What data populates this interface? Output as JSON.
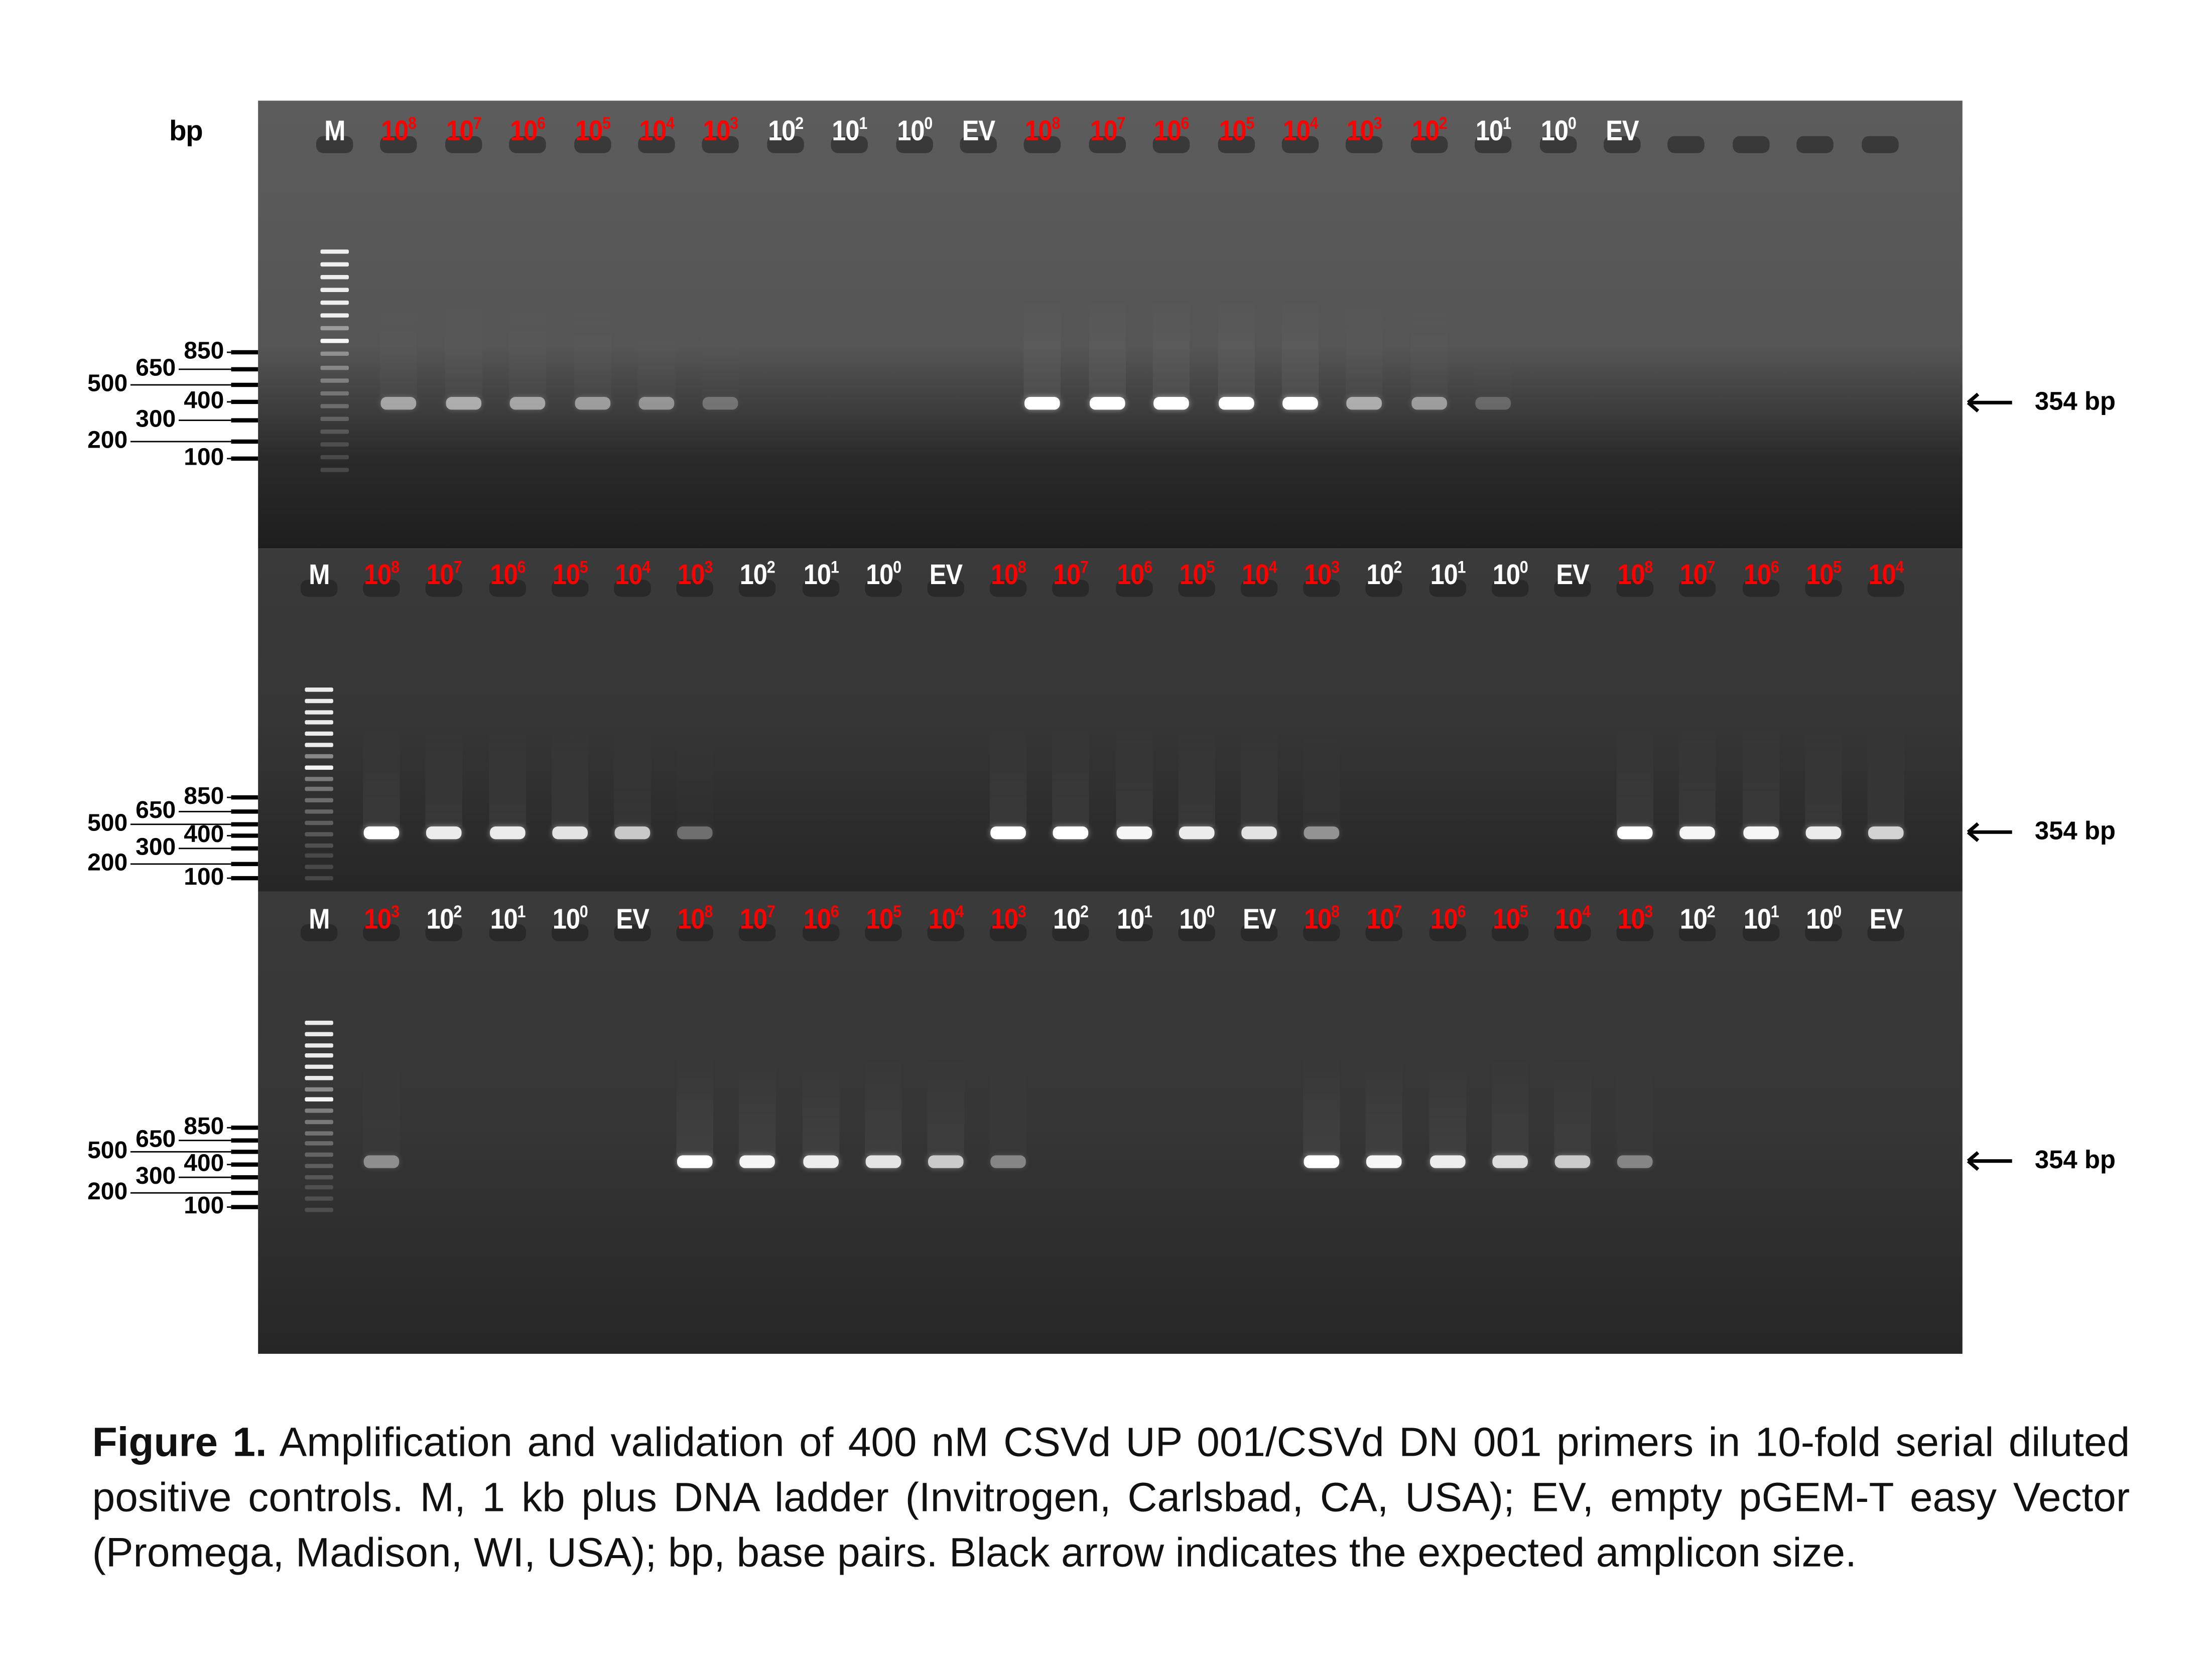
{
  "figure": {
    "axis_unit": "bp",
    "ladder_ticks": [
      "850",
      "650",
      "500",
      "400",
      "300",
      "200",
      "100"
    ],
    "amplicon_label": "354 bp",
    "colors": {
      "positive_label": "#ff0000",
      "negative_label": "#ffffff",
      "gel_top": "#5a5a5a",
      "gel_bottom": "#1f1f1f"
    },
    "panels": [
      {
        "lanes": [
          {
            "label": "M"
          },
          {
            "base": "10",
            "exp": "8",
            "red": true,
            "band": 0.45
          },
          {
            "base": "10",
            "exp": "7",
            "red": true,
            "band": 0.5
          },
          {
            "base": "10",
            "exp": "6",
            "red": true,
            "band": 0.45
          },
          {
            "base": "10",
            "exp": "5",
            "red": true,
            "band": 0.4
          },
          {
            "base": "10",
            "exp": "4",
            "red": true,
            "band": 0.35
          },
          {
            "base": "10",
            "exp": "3",
            "red": true,
            "band": 0.15
          },
          {
            "base": "10",
            "exp": "2",
            "band": 0
          },
          {
            "base": "10",
            "exp": "1",
            "band": 0
          },
          {
            "base": "10",
            "exp": "0",
            "band": 0
          },
          {
            "label": "EV",
            "band": 0
          },
          {
            "base": "10",
            "exp": "8",
            "red": true,
            "band": 1
          },
          {
            "base": "10",
            "exp": "7",
            "red": true,
            "band": 1
          },
          {
            "base": "10",
            "exp": "6",
            "red": true,
            "band": 1
          },
          {
            "base": "10",
            "exp": "5",
            "red": true,
            "band": 1
          },
          {
            "base": "10",
            "exp": "4",
            "red": true,
            "band": 1
          },
          {
            "base": "10",
            "exp": "3",
            "red": true,
            "band": 0.5
          },
          {
            "base": "10",
            "exp": "2",
            "red": true,
            "band": 0.4
          },
          {
            "base": "10",
            "exp": "1",
            "band": 0.08
          },
          {
            "base": "10",
            "exp": "0",
            "band": 0
          },
          {
            "label": "EV",
            "band": 0
          },
          {
            "empty": true
          },
          {
            "empty": true
          },
          {
            "empty": true
          },
          {
            "empty": true
          }
        ]
      },
      {
        "lanes": [
          {
            "label": "M"
          },
          {
            "base": "10",
            "exp": "8",
            "red": true,
            "band": 1
          },
          {
            "base": "10",
            "exp": "7",
            "red": true,
            "band": 0.9
          },
          {
            "base": "10",
            "exp": "6",
            "red": true,
            "band": 0.9
          },
          {
            "base": "10",
            "exp": "5",
            "red": true,
            "band": 0.85
          },
          {
            "base": "10",
            "exp": "4",
            "red": true,
            "band": 0.7
          },
          {
            "base": "10",
            "exp": "3",
            "red": true,
            "band": 0.2
          },
          {
            "base": "10",
            "exp": "2",
            "band": 0
          },
          {
            "base": "10",
            "exp": "1",
            "band": 0
          },
          {
            "base": "10",
            "exp": "0",
            "band": 0
          },
          {
            "label": "EV",
            "band": 0
          },
          {
            "base": "10",
            "exp": "8",
            "red": true,
            "band": 1
          },
          {
            "base": "10",
            "exp": "7",
            "red": true,
            "band": 1
          },
          {
            "base": "10",
            "exp": "6",
            "red": true,
            "band": 0.95
          },
          {
            "base": "10",
            "exp": "5",
            "red": true,
            "band": 0.9
          },
          {
            "base": "10",
            "exp": "4",
            "red": true,
            "band": 0.85
          },
          {
            "base": "10",
            "exp": "3",
            "red": true,
            "band": 0.4
          },
          {
            "base": "10",
            "exp": "2",
            "band": 0
          },
          {
            "base": "10",
            "exp": "1",
            "band": 0
          },
          {
            "base": "10",
            "exp": "0",
            "band": 0
          },
          {
            "label": "EV",
            "band": 0
          },
          {
            "base": "10",
            "exp": "8",
            "red": true,
            "band": 1
          },
          {
            "base": "10",
            "exp": "7",
            "red": true,
            "band": 0.95
          },
          {
            "base": "10",
            "exp": "6",
            "red": true,
            "band": 0.95
          },
          {
            "base": "10",
            "exp": "5",
            "red": true,
            "band": 0.9
          },
          {
            "base": "10",
            "exp": "4",
            "red": true,
            "band": 0.75
          }
        ]
      },
      {
        "lanes": [
          {
            "label": "M"
          },
          {
            "base": "10",
            "exp": "3",
            "red": true,
            "band": 0.35
          },
          {
            "base": "10",
            "exp": "2",
            "band": 0
          },
          {
            "base": "10",
            "exp": "1",
            "band": 0
          },
          {
            "base": "10",
            "exp": "0",
            "band": 0
          },
          {
            "label": "EV",
            "band": 0
          },
          {
            "base": "10",
            "exp": "8",
            "red": true,
            "band": 1
          },
          {
            "base": "10",
            "exp": "7",
            "red": true,
            "band": 0.95
          },
          {
            "base": "10",
            "exp": "6",
            "red": true,
            "band": 0.9
          },
          {
            "base": "10",
            "exp": "5",
            "red": true,
            "band": 0.85
          },
          {
            "base": "10",
            "exp": "4",
            "red": true,
            "band": 0.7
          },
          {
            "base": "10",
            "exp": "3",
            "red": true,
            "band": 0.3
          },
          {
            "base": "10",
            "exp": "2",
            "band": 0
          },
          {
            "base": "10",
            "exp": "1",
            "band": 0
          },
          {
            "base": "10",
            "exp": "0",
            "band": 0
          },
          {
            "label": "EV",
            "band": 0
          },
          {
            "base": "10",
            "exp": "8",
            "red": true,
            "band": 1
          },
          {
            "base": "10",
            "exp": "7",
            "red": true,
            "band": 0.95
          },
          {
            "base": "10",
            "exp": "6",
            "red": true,
            "band": 0.9
          },
          {
            "base": "10",
            "exp": "5",
            "red": true,
            "band": 0.8
          },
          {
            "base": "10",
            "exp": "4",
            "red": true,
            "band": 0.7
          },
          {
            "base": "10",
            "exp": "3",
            "red": true,
            "band": 0.3
          },
          {
            "base": "10",
            "exp": "2",
            "band": 0
          },
          {
            "base": "10",
            "exp": "1",
            "band": 0
          },
          {
            "base": "10",
            "exp": "0",
            "band": 0
          },
          {
            "label": "EV",
            "band": 0
          }
        ]
      }
    ]
  },
  "caption": {
    "label": "Figure 1.",
    "text": " Amplification and validation of 400 nM CSVd UP 001/CSVd DN 001 primers in 10-fold serial diluted positive controls. M, 1 kb plus DNA ladder (Invitrogen, Carlsbad, CA, USA); EV, empty pGEM-T easy Vector (Promega, Madison, WI, USA); bp, base pairs. Black arrow indicates the expected amplicon size."
  }
}
